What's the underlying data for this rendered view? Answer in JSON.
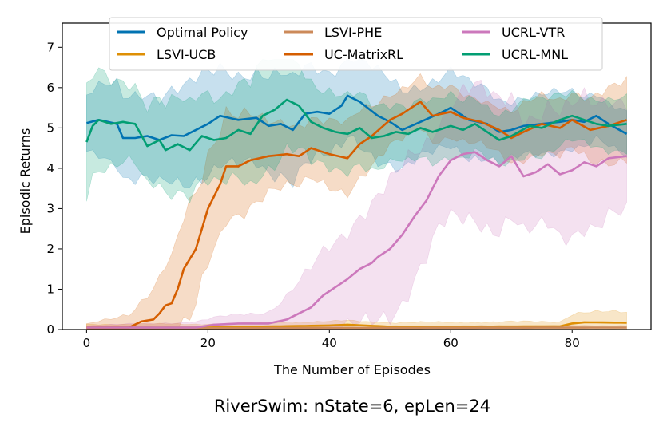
{
  "chart_data": {
    "type": "line",
    "title": "RiverSwim: nState=6, epLen=24",
    "xlabel": "The Number of Episodes",
    "ylabel": "Episodic Returns",
    "xlim": [
      -4,
      93
    ],
    "ylim": [
      0,
      7.6
    ],
    "xticks": [
      0,
      20,
      40,
      60,
      80
    ],
    "yticks": [
      0,
      1,
      2,
      3,
      4,
      5,
      6,
      7
    ],
    "legend": "top-center",
    "grid": false,
    "series": [
      {
        "name": "Optimal Policy",
        "color": "#0173b2",
        "keypoints": [
          [
            0,
            5.12
          ],
          [
            2,
            5.2
          ],
          [
            5,
            5.1
          ],
          [
            6,
            4.75
          ],
          [
            8,
            4.75
          ],
          [
            10,
            4.8
          ],
          [
            12,
            4.7
          ],
          [
            14,
            4.82
          ],
          [
            16,
            4.8
          ],
          [
            18,
            4.95
          ],
          [
            20,
            5.1
          ],
          [
            22,
            5.3
          ],
          [
            25,
            5.2
          ],
          [
            28,
            5.25
          ],
          [
            30,
            5.05
          ],
          [
            32,
            5.1
          ],
          [
            34,
            4.95
          ],
          [
            36,
            5.35
          ],
          [
            38,
            5.4
          ],
          [
            40,
            5.35
          ],
          [
            42,
            5.55
          ],
          [
            43,
            5.8
          ],
          [
            45,
            5.65
          ],
          [
            48,
            5.3
          ],
          [
            50,
            5.15
          ],
          [
            52,
            4.95
          ],
          [
            55,
            5.15
          ],
          [
            58,
            5.35
          ],
          [
            60,
            5.5
          ],
          [
            63,
            5.2
          ],
          [
            66,
            5.1
          ],
          [
            68,
            4.9
          ],
          [
            70,
            4.95
          ],
          [
            72,
            5.05
          ],
          [
            75,
            5.1
          ],
          [
            78,
            5.15
          ],
          [
            80,
            5.2
          ],
          [
            82,
            5.15
          ],
          [
            84,
            5.3
          ],
          [
            86,
            5.1
          ],
          [
            89,
            4.85
          ]
        ],
        "band": [
          [
            0,
            0.7
          ],
          [
            10,
            1.15
          ],
          [
            30,
            1.2
          ],
          [
            50,
            1.0
          ],
          [
            60,
            0.9
          ],
          [
            89,
            0.55
          ]
        ]
      },
      {
        "name": "LSVI-UCB",
        "color": "#de8f05",
        "keypoints": [
          [
            0,
            0.05
          ],
          [
            20,
            0.05
          ],
          [
            40,
            0.1
          ],
          [
            43,
            0.12
          ],
          [
            50,
            0.07
          ],
          [
            60,
            0.07
          ],
          [
            78,
            0.08
          ],
          [
            80,
            0.15
          ],
          [
            82,
            0.18
          ],
          [
            89,
            0.17
          ]
        ],
        "band": [
          [
            0,
            0.08
          ],
          [
            40,
            0.1
          ],
          [
            78,
            0.12
          ],
          [
            80,
            0.25
          ],
          [
            89,
            0.25
          ]
        ]
      },
      {
        "name": "LSVI-PHE",
        "color": "#cc8a5a",
        "keypoints": [
          [
            0,
            0.03
          ],
          [
            89,
            0.05
          ]
        ],
        "band": [
          [
            0,
            0.04
          ],
          [
            89,
            0.05
          ]
        ]
      },
      {
        "name": "UC-MatrixRL",
        "color": "#d55e00",
        "keypoints": [
          [
            0,
            0.05
          ],
          [
            7,
            0.05
          ],
          [
            9,
            0.2
          ],
          [
            11,
            0.25
          ],
          [
            12,
            0.4
          ],
          [
            13,
            0.6
          ],
          [
            14,
            0.65
          ],
          [
            15,
            1.0
          ],
          [
            16,
            1.5
          ],
          [
            18,
            2.0
          ],
          [
            19,
            2.5
          ],
          [
            20,
            3.0
          ],
          [
            22,
            3.6
          ],
          [
            23,
            4.05
          ],
          [
            25,
            4.05
          ],
          [
            27,
            4.2
          ],
          [
            30,
            4.3
          ],
          [
            33,
            4.35
          ],
          [
            35,
            4.3
          ],
          [
            37,
            4.5
          ],
          [
            40,
            4.35
          ],
          [
            43,
            4.25
          ],
          [
            45,
            4.6
          ],
          [
            47,
            4.8
          ],
          [
            50,
            5.2
          ],
          [
            52,
            5.35
          ],
          [
            55,
            5.65
          ],
          [
            57,
            5.3
          ],
          [
            60,
            5.4
          ],
          [
            62,
            5.25
          ],
          [
            65,
            5.15
          ],
          [
            68,
            4.95
          ],
          [
            70,
            4.75
          ],
          [
            72,
            4.9
          ],
          [
            75,
            5.1
          ],
          [
            78,
            5.0
          ],
          [
            80,
            5.2
          ],
          [
            83,
            4.95
          ],
          [
            86,
            5.05
          ],
          [
            89,
            5.2
          ]
        ],
        "band": [
          [
            0,
            0.08
          ],
          [
            8,
            0.4
          ],
          [
            12,
            0.8
          ],
          [
            17,
            1.4
          ],
          [
            22,
            1.5
          ],
          [
            30,
            0.8
          ],
          [
            45,
            0.8
          ],
          [
            55,
            0.6
          ],
          [
            70,
            0.6
          ],
          [
            89,
            0.9
          ]
        ]
      },
      {
        "name": "UCRL-VTR",
        "color": "#cc78bc",
        "keypoints": [
          [
            0,
            0.05
          ],
          [
            18,
            0.05
          ],
          [
            21,
            0.12
          ],
          [
            25,
            0.15
          ],
          [
            30,
            0.15
          ],
          [
            33,
            0.25
          ],
          [
            35,
            0.4
          ],
          [
            37,
            0.55
          ],
          [
            39,
            0.85
          ],
          [
            41,
            1.05
          ],
          [
            43,
            1.25
          ],
          [
            45,
            1.5
          ],
          [
            47,
            1.65
          ],
          [
            48,
            1.8
          ],
          [
            50,
            2.0
          ],
          [
            52,
            2.35
          ],
          [
            54,
            2.8
          ],
          [
            56,
            3.2
          ],
          [
            58,
            3.8
          ],
          [
            60,
            4.2
          ],
          [
            62,
            4.35
          ],
          [
            64,
            4.4
          ],
          [
            66,
            4.2
          ],
          [
            68,
            4.05
          ],
          [
            70,
            4.3
          ],
          [
            72,
            3.8
          ],
          [
            74,
            3.9
          ],
          [
            76,
            4.1
          ],
          [
            78,
            3.85
          ],
          [
            80,
            3.95
          ],
          [
            82,
            4.15
          ],
          [
            84,
            4.05
          ],
          [
            86,
            4.25
          ],
          [
            89,
            4.3
          ]
        ],
        "band": [
          [
            0,
            0.05
          ],
          [
            20,
            0.15
          ],
          [
            30,
            0.3
          ],
          [
            38,
            1.0
          ],
          [
            45,
            1.4
          ],
          [
            52,
            1.6
          ],
          [
            58,
            1.4
          ],
          [
            62,
            1.6
          ],
          [
            70,
            1.5
          ],
          [
            80,
            1.5
          ],
          [
            89,
            1.5
          ]
        ]
      },
      {
        "name": "UCRL-MNL",
        "color": "#029e73",
        "keypoints": [
          [
            0,
            4.65
          ],
          [
            1,
            5.05
          ],
          [
            2,
            5.2
          ],
          [
            4,
            5.1
          ],
          [
            6,
            5.15
          ],
          [
            8,
            5.1
          ],
          [
            10,
            4.55
          ],
          [
            12,
            4.7
          ],
          [
            13,
            4.45
          ],
          [
            15,
            4.6
          ],
          [
            17,
            4.45
          ],
          [
            19,
            4.8
          ],
          [
            21,
            4.7
          ],
          [
            23,
            4.75
          ],
          [
            25,
            4.95
          ],
          [
            27,
            4.85
          ],
          [
            29,
            5.3
          ],
          [
            31,
            5.45
          ],
          [
            33,
            5.7
          ],
          [
            35,
            5.55
          ],
          [
            37,
            5.15
          ],
          [
            39,
            5.0
          ],
          [
            41,
            4.9
          ],
          [
            43,
            4.85
          ],
          [
            45,
            5.0
          ],
          [
            47,
            4.75
          ],
          [
            49,
            4.8
          ],
          [
            51,
            4.9
          ],
          [
            53,
            4.85
          ],
          [
            55,
            5.0
          ],
          [
            57,
            4.9
          ],
          [
            60,
            5.05
          ],
          [
            62,
            4.95
          ],
          [
            64,
            5.1
          ],
          [
            66,
            4.9
          ],
          [
            68,
            4.7
          ],
          [
            70,
            4.8
          ],
          [
            73,
            5.05
          ],
          [
            75,
            5.0
          ],
          [
            78,
            5.2
          ],
          [
            80,
            5.3
          ],
          [
            82,
            5.2
          ],
          [
            84,
            5.1
          ],
          [
            86,
            5.05
          ],
          [
            89,
            5.1
          ]
        ],
        "band": [
          [
            0,
            1.2
          ],
          [
            10,
            1.0
          ],
          [
            25,
            1.2
          ],
          [
            30,
            1.3
          ],
          [
            45,
            0.8
          ],
          [
            60,
            0.7
          ],
          [
            89,
            0.6
          ]
        ]
      }
    ]
  }
}
